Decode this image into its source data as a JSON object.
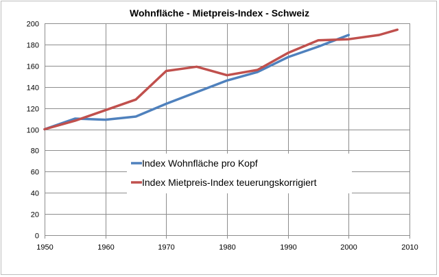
{
  "chart_data": {
    "type": "line",
    "title": "Wohnfläche - Mietpreis-Index - Schweiz",
    "xlabel": "",
    "ylabel": "",
    "xlim": [
      1950,
      2010
    ],
    "ylim": [
      0,
      200
    ],
    "xticks": [
      1950,
      1960,
      1970,
      1980,
      1990,
      2000,
      2010
    ],
    "yticks": [
      0,
      20,
      40,
      60,
      80,
      100,
      120,
      140,
      160,
      180,
      200
    ],
    "grid": true,
    "legend_position": "center",
    "series": [
      {
        "name": "Index Wohnfläche pro Kopf",
        "color": "#4f81bd",
        "points": [
          [
            1950,
            100
          ],
          [
            1955,
            110
          ],
          [
            1960,
            109
          ],
          [
            1965,
            112
          ],
          [
            1970,
            124
          ],
          [
            1975,
            135
          ],
          [
            1980,
            146
          ],
          [
            1985,
            154
          ],
          [
            1990,
            168
          ],
          [
            1995,
            178
          ],
          [
            2000,
            189
          ]
        ]
      },
      {
        "name": "Index Mietpreis-Index teuerungskorrigiert",
        "color": "#c0504d",
        "points": [
          [
            1950,
            100
          ],
          [
            1955,
            108
          ],
          [
            1960,
            118
          ],
          [
            1965,
            128
          ],
          [
            1970,
            155
          ],
          [
            1975,
            159
          ],
          [
            1980,
            151
          ],
          [
            1985,
            156
          ],
          [
            1990,
            172
          ],
          [
            1995,
            184
          ],
          [
            2000,
            185
          ],
          [
            2005,
            189
          ],
          [
            2008,
            194
          ]
        ]
      }
    ]
  }
}
